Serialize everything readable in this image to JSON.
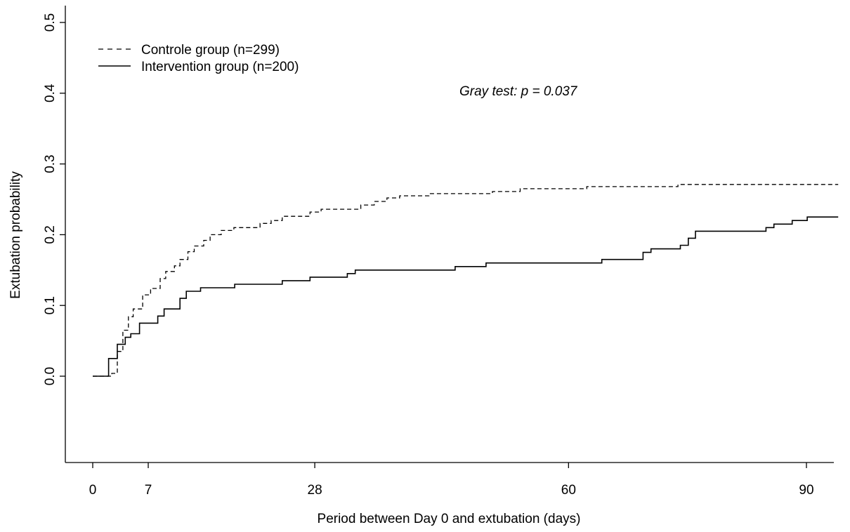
{
  "chart_data": {
    "type": "line",
    "step": true,
    "title": "",
    "xlabel": "Period between Day 0 and extubation (days)",
    "ylabel": "Extubation probability",
    "xlim": [
      -3.5,
      94
    ],
    "ylim": [
      -0.12,
      0.5
    ],
    "x_ticks": [
      {
        "value": 0,
        "label": "0"
      },
      {
        "value": 7,
        "label": "7"
      },
      {
        "value": 28,
        "label": "28"
      },
      {
        "value": 60,
        "label": "60"
      },
      {
        "value": 90,
        "label": "90"
      }
    ],
    "y_ticks": [
      {
        "value": 0.0,
        "label": "0.0"
      },
      {
        "value": 0.1,
        "label": "0.1"
      },
      {
        "value": 0.2,
        "label": "0.2"
      },
      {
        "value": 0.3,
        "label": "0.3"
      },
      {
        "value": 0.4,
        "label": "0.4"
      },
      {
        "value": 0.5,
        "label": "0.5"
      }
    ],
    "grid": false,
    "legend_position": "top-left",
    "annotation": "Gray test: p = 0.037",
    "series": [
      {
        "name": "Controle group (n=299)",
        "line_style": "dashed",
        "color": "#000000",
        "points": [
          [
            0,
            0
          ],
          [
            2.4,
            0
          ],
          [
            2.4,
            0.004
          ],
          [
            3.1,
            0.004
          ],
          [
            3.1,
            0.035
          ],
          [
            3.8,
            0.035
          ],
          [
            3.8,
            0.065
          ],
          [
            4.5,
            0.065
          ],
          [
            4.5,
            0.084
          ],
          [
            5.1,
            0.084
          ],
          [
            5.1,
            0.095
          ],
          [
            6.3,
            0.095
          ],
          [
            6.3,
            0.115
          ],
          [
            7.3,
            0.115
          ],
          [
            7.3,
            0.124
          ],
          [
            8.5,
            0.124
          ],
          [
            8.5,
            0.138
          ],
          [
            9.2,
            0.138
          ],
          [
            9.2,
            0.148
          ],
          [
            10.3,
            0.148
          ],
          [
            10.3,
            0.156
          ],
          [
            11.0,
            0.156
          ],
          [
            11.0,
            0.165
          ],
          [
            12.0,
            0.165
          ],
          [
            12.0,
            0.176
          ],
          [
            12.8,
            0.176
          ],
          [
            12.8,
            0.184
          ],
          [
            14.0,
            0.184
          ],
          [
            14.0,
            0.192
          ],
          [
            14.8,
            0.192
          ],
          [
            14.8,
            0.2
          ],
          [
            16.2,
            0.2
          ],
          [
            16.2,
            0.206
          ],
          [
            17.8,
            0.206
          ],
          [
            17.8,
            0.21
          ],
          [
            21.1,
            0.21
          ],
          [
            21.1,
            0.216
          ],
          [
            22.5,
            0.216
          ],
          [
            22.5,
            0.22
          ],
          [
            23.9,
            0.22
          ],
          [
            23.9,
            0.226
          ],
          [
            27.4,
            0.226
          ],
          [
            27.4,
            0.232
          ],
          [
            28.8,
            0.232
          ],
          [
            28.8,
            0.236
          ],
          [
            33.8,
            0.236
          ],
          [
            33.8,
            0.242
          ],
          [
            35.5,
            0.242
          ],
          [
            35.5,
            0.247
          ],
          [
            37.1,
            0.247
          ],
          [
            37.1,
            0.252
          ],
          [
            38.7,
            0.252
          ],
          [
            38.7,
            0.255
          ],
          [
            42.4,
            0.255
          ],
          [
            42.4,
            0.258
          ],
          [
            50.4,
            0.258
          ],
          [
            50.4,
            0.261
          ],
          [
            53.9,
            0.261
          ],
          [
            53.9,
            0.265
          ],
          [
            62.3,
            0.265
          ],
          [
            62.3,
            0.268
          ],
          [
            73.8,
            0.268
          ],
          [
            73.8,
            0.271
          ],
          [
            94,
            0.271
          ]
        ]
      },
      {
        "name": "Intervention group (n=200)",
        "line_style": "solid",
        "color": "#000000",
        "points": [
          [
            0,
            0
          ],
          [
            2.0,
            0
          ],
          [
            2.0,
            0.025
          ],
          [
            3.1,
            0.025
          ],
          [
            3.1,
            0.045
          ],
          [
            4.1,
            0.045
          ],
          [
            4.1,
            0.055
          ],
          [
            4.8,
            0.055
          ],
          [
            4.8,
            0.06
          ],
          [
            5.9,
            0.06
          ],
          [
            5.9,
            0.075
          ],
          [
            8.2,
            0.075
          ],
          [
            8.2,
            0.085
          ],
          [
            9.0,
            0.085
          ],
          [
            9.0,
            0.095
          ],
          [
            11.0,
            0.095
          ],
          [
            11.0,
            0.11
          ],
          [
            11.8,
            0.11
          ],
          [
            11.8,
            0.12
          ],
          [
            13.6,
            0.12
          ],
          [
            13.6,
            0.125
          ],
          [
            17.9,
            0.125
          ],
          [
            17.9,
            0.13
          ],
          [
            23.9,
            0.13
          ],
          [
            23.9,
            0.135
          ],
          [
            27.4,
            0.135
          ],
          [
            27.4,
            0.14
          ],
          [
            32.1,
            0.14
          ],
          [
            32.1,
            0.145
          ],
          [
            33.1,
            0.145
          ],
          [
            33.1,
            0.15
          ],
          [
            45.7,
            0.15
          ],
          [
            45.7,
            0.155
          ],
          [
            49.6,
            0.155
          ],
          [
            49.6,
            0.16
          ],
          [
            64.2,
            0.16
          ],
          [
            64.2,
            0.165
          ],
          [
            69.4,
            0.165
          ],
          [
            69.4,
            0.175
          ],
          [
            70.4,
            0.175
          ],
          [
            70.4,
            0.18
          ],
          [
            74.1,
            0.18
          ],
          [
            74.1,
            0.185
          ],
          [
            75.1,
            0.185
          ],
          [
            75.1,
            0.195
          ],
          [
            76.0,
            0.195
          ],
          [
            76.0,
            0.205
          ],
          [
            84.9,
            0.205
          ],
          [
            84.9,
            0.21
          ],
          [
            85.9,
            0.21
          ],
          [
            85.9,
            0.215
          ],
          [
            88.2,
            0.215
          ],
          [
            88.2,
            0.22
          ],
          [
            90.1,
            0.22
          ],
          [
            90.1,
            0.225
          ],
          [
            94,
            0.225
          ]
        ]
      }
    ]
  }
}
